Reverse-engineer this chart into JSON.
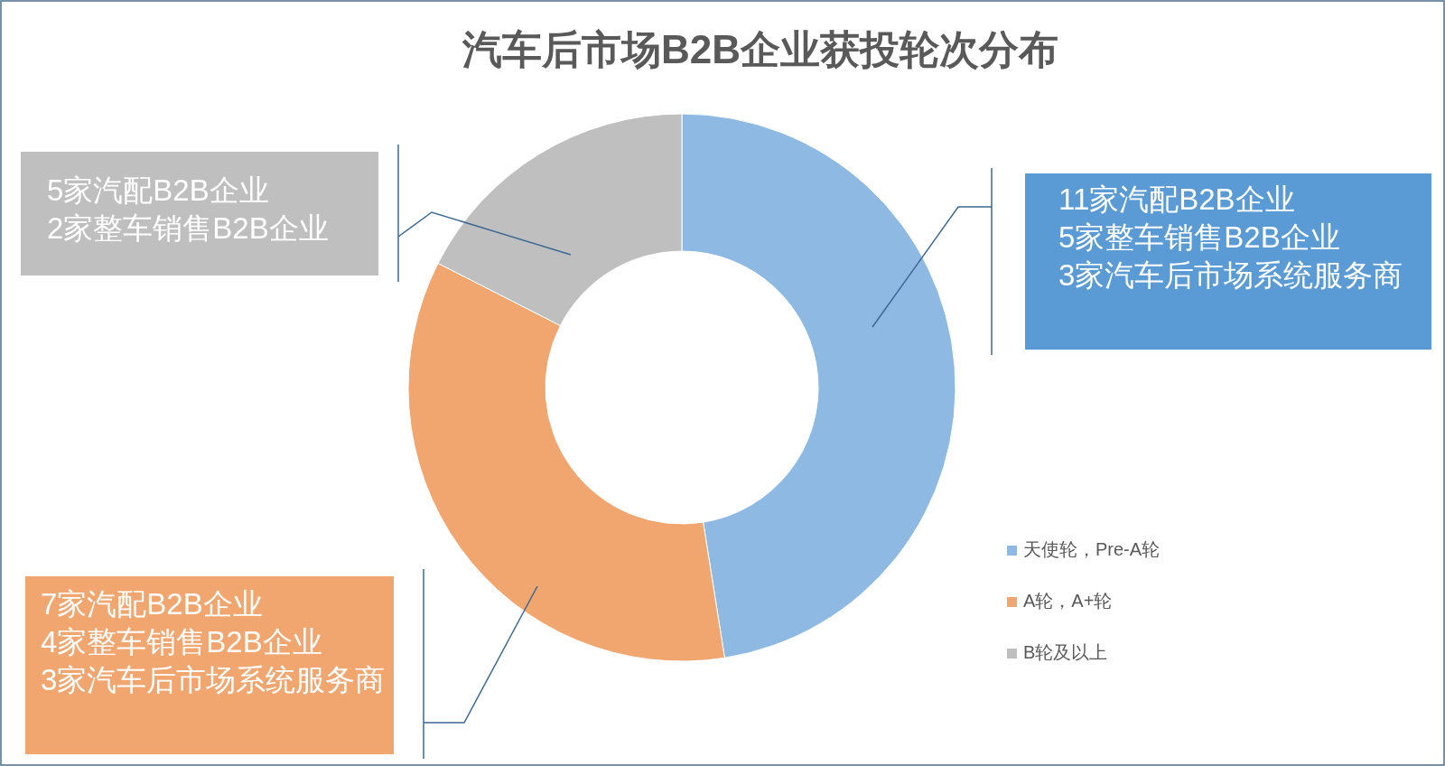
{
  "chart_data": {
    "type": "donut",
    "title": "汽车后市场B2B企业获投轮次分布",
    "categories": [
      "天使轮，Pre-A轮",
      "A轮，A+轮",
      "B轮及以上"
    ],
    "values": [
      47.5,
      35,
      17.5
    ],
    "colors": [
      "#8db9e2",
      "#f1a56f",
      "#bfbfbf"
    ],
    "legend": "right",
    "annotations": [
      "11家汽配B2B企业\n5家整车销售B2B企业\n3家汽车后市场系统服务商",
      "7家汽配B2B企业\n4家整车销售B2B企业\n3家汽车后市场系统服务商",
      "5家汽配B2B企业\n2家整车销售B2B企业"
    ]
  }
}
